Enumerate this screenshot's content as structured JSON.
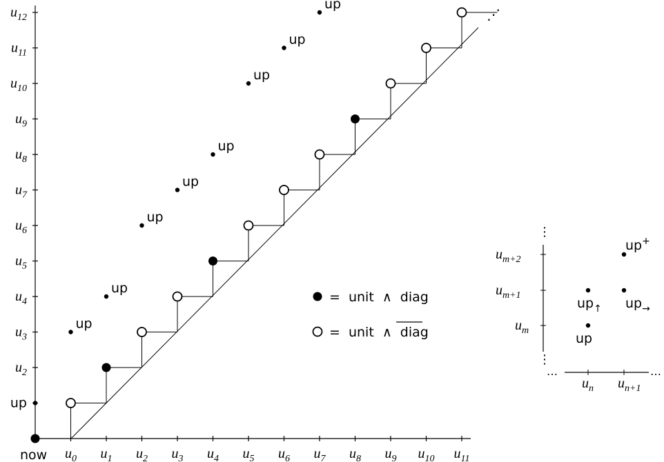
{
  "main": {
    "y_labels": [
      "u2",
      "u3",
      "u4",
      "u5",
      "u6",
      "u7",
      "u8",
      "u9",
      "u10",
      "u11",
      "u12"
    ],
    "y_origin_label": "up",
    "x_labels": [
      "u0",
      "u1",
      "u2",
      "u3",
      "u4",
      "u5",
      "u6",
      "u7",
      "u8",
      "u9",
      "u10",
      "u11"
    ],
    "x_origin_label": "now",
    "ellipsis": "⋰",
    "up_label": "up",
    "up_points": [
      {
        "col": 0,
        "row": 3
      },
      {
        "col": 1,
        "row": 4
      },
      {
        "col": 2,
        "row": 6
      },
      {
        "col": 3,
        "row": 7
      },
      {
        "col": 4,
        "row": 8
      },
      {
        "col": 5,
        "row": 10
      },
      {
        "col": 6,
        "row": 11
      },
      {
        "col": 7,
        "row": 12
      }
    ],
    "stair_points": [
      {
        "col": 0,
        "row": 1,
        "filled": false
      },
      {
        "col": 1,
        "row": 2,
        "filled": true
      },
      {
        "col": 2,
        "row": 3,
        "filled": false
      },
      {
        "col": 3,
        "row": 4,
        "filled": false
      },
      {
        "col": 4,
        "row": 5,
        "filled": true
      },
      {
        "col": 5,
        "row": 6,
        "filled": false
      },
      {
        "col": 6,
        "row": 7,
        "filled": false
      },
      {
        "col": 7,
        "row": 8,
        "filled": false
      },
      {
        "col": 8,
        "row": 9,
        "filled": true
      },
      {
        "col": 9,
        "row": 10,
        "filled": false
      },
      {
        "col": 10,
        "row": 11,
        "filled": false
      },
      {
        "col": 11,
        "row": 12,
        "filled": false
      }
    ]
  },
  "legend": {
    "filled": {
      "eq": "=",
      "left": "unit",
      "op": "∧",
      "right": "diag"
    },
    "hollow": {
      "eq": "=",
      "left": "unit",
      "op": "∧",
      "right": "diag"
    }
  },
  "inset": {
    "y_labels": [
      {
        "base": "u",
        "sub": "m"
      },
      {
        "base": "u",
        "sub": "m+1"
      },
      {
        "base": "u",
        "sub": "m+2"
      }
    ],
    "x_labels": [
      {
        "base": "u",
        "sub": "n"
      },
      {
        "base": "u",
        "sub": "n+1"
      }
    ],
    "vdots": "⋮",
    "hdots": "…",
    "up": "up",
    "up_up": {
      "base": "up",
      "sub": "↑"
    },
    "up_right": {
      "base": "up",
      "sub": "→"
    },
    "up_plus": {
      "base": "up",
      "sup": "+"
    }
  }
}
